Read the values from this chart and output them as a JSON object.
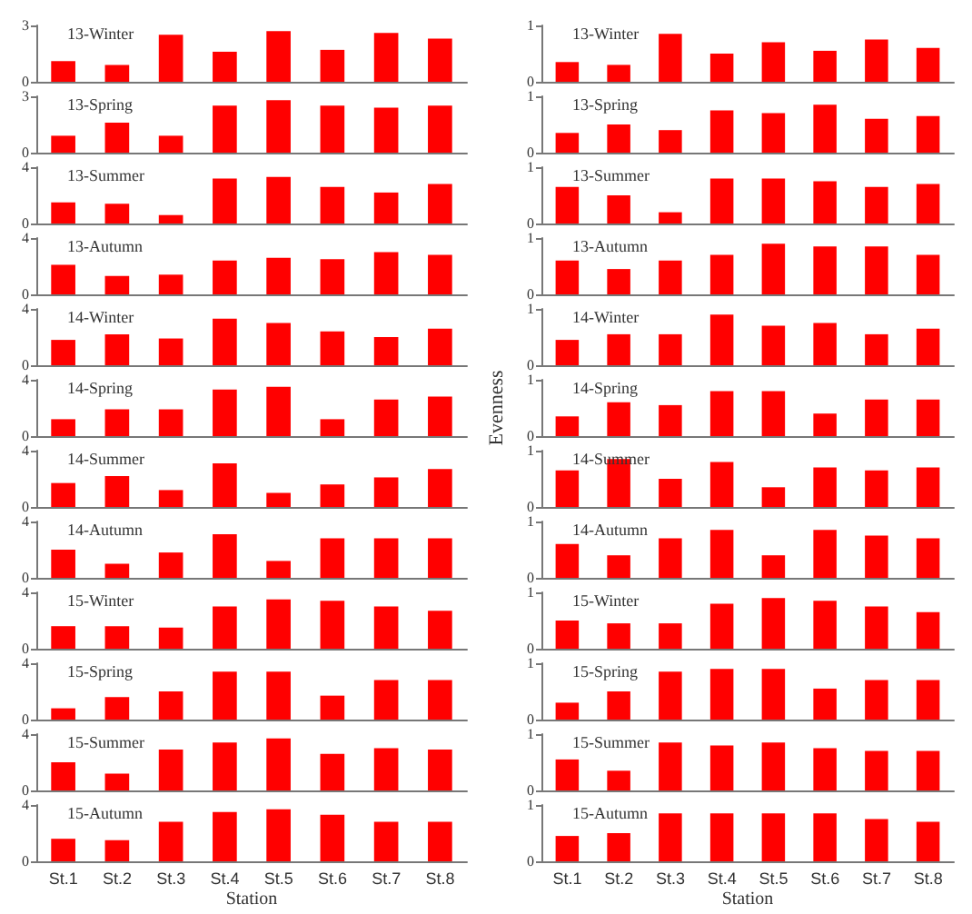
{
  "chart_data": [
    {
      "type": "bar",
      "title": "13-Winter",
      "categories": [
        null,
        null,
        null,
        null,
        null,
        null,
        null,
        null
      ],
      "values": [
        1.1,
        0.9,
        2.5,
        1.6,
        2.7,
        1.7,
        2.6,
        2.3
      ],
      "color": "#ff0000",
      "ylim": [
        0,
        3
      ],
      "yticks": [
        0,
        3
      ],
      "tick_labels": "y"
    },
    {
      "type": "bar",
      "title": "13-Spring",
      "categories": [
        null,
        null,
        null,
        null,
        null,
        null,
        null,
        null
      ],
      "values": [
        0.9,
        1.6,
        0.9,
        2.5,
        2.8,
        2.5,
        2.4,
        2.5
      ],
      "color": "#ff0000",
      "ylim": [
        0,
        3
      ],
      "yticks": [
        0,
        3
      ],
      "tick_labels": "y"
    },
    {
      "type": "bar",
      "title": "13-Summer",
      "categories": [
        null,
        null,
        null,
        null,
        null,
        null,
        null,
        null
      ],
      "values": [
        1.5,
        1.4,
        0.6,
        3.2,
        3.3,
        2.6,
        2.2,
        2.8
      ],
      "color": "#ff0000",
      "ylim": [
        0,
        4
      ],
      "yticks": [
        0,
        4
      ],
      "tick_labels": "y"
    },
    {
      "type": "bar",
      "title": "13-Autumn",
      "categories": [
        null,
        null,
        null,
        null,
        null,
        null,
        null,
        null
      ],
      "values": [
        2.1,
        1.3,
        1.4,
        2.4,
        2.6,
        2.5,
        3.0,
        2.8
      ],
      "color": "#ff0000",
      "ylim": [
        0,
        4
      ],
      "yticks": [
        0,
        4
      ],
      "tick_labels": "y"
    },
    {
      "type": "bar",
      "title": "14-Winter",
      "categories": [
        null,
        null,
        null,
        null,
        null,
        null,
        null,
        null
      ],
      "values": [
        1.8,
        2.2,
        1.9,
        3.3,
        3.0,
        2.4,
        2.0,
        2.6
      ],
      "color": "#ff0000",
      "ylim": [
        0,
        4
      ],
      "yticks": [
        0,
        4
      ],
      "tick_labels": "y"
    },
    {
      "type": "bar",
      "title": "14-Spring",
      "categories": [
        null,
        null,
        null,
        null,
        null,
        null,
        null,
        null
      ],
      "values": [
        1.2,
        1.9,
        1.9,
        3.3,
        3.5,
        1.2,
        2.6,
        2.8
      ],
      "color": "#ff0000",
      "ylim": [
        0,
        4
      ],
      "yticks": [
        0,
        4
      ],
      "tick_labels": "y"
    },
    {
      "type": "bar",
      "title": "14-Summer",
      "categories": [
        null,
        null,
        null,
        null,
        null,
        null,
        null,
        null
      ],
      "values": [
        1.7,
        2.2,
        1.2,
        3.1,
        1.0,
        1.6,
        2.1,
        2.7
      ],
      "color": "#ff0000",
      "ylim": [
        0,
        4
      ],
      "yticks": [
        0,
        4
      ],
      "tick_labels": "y"
    },
    {
      "type": "bar",
      "title": "14-Autumn",
      "categories": [
        null,
        null,
        null,
        null,
        null,
        null,
        null,
        null
      ],
      "values": [
        2.0,
        1.0,
        1.8,
        3.1,
        1.2,
        2.8,
        2.8,
        2.8
      ],
      "color": "#ff0000",
      "ylim": [
        0,
        4
      ],
      "yticks": [
        0,
        4
      ],
      "tick_labels": "y"
    },
    {
      "type": "bar",
      "title": "15-Winter",
      "categories": [
        null,
        null,
        null,
        null,
        null,
        null,
        null,
        null
      ],
      "values": [
        1.6,
        1.6,
        1.5,
        3.0,
        3.5,
        3.4,
        3.0,
        2.7
      ],
      "color": "#ff0000",
      "ylim": [
        0,
        4
      ],
      "yticks": [
        0,
        4
      ],
      "tick_labels": "y"
    },
    {
      "type": "bar",
      "title": "15-Spring",
      "categories": [
        null,
        null,
        null,
        null,
        null,
        null,
        null,
        null
      ],
      "values": [
        0.8,
        1.6,
        2.0,
        3.4,
        3.4,
        1.7,
        2.8,
        2.8
      ],
      "color": "#ff0000",
      "ylim": [
        0,
        4
      ],
      "yticks": [
        0,
        4
      ],
      "tick_labels": "y"
    },
    {
      "type": "bar",
      "title": "15-Summer",
      "categories": [
        null,
        null,
        null,
        null,
        null,
        null,
        null,
        null
      ],
      "values": [
        2.0,
        1.2,
        2.9,
        3.4,
        3.7,
        2.6,
        3.0,
        2.9
      ],
      "color": "#ff0000",
      "ylim": [
        0,
        4
      ],
      "yticks": [
        0,
        4
      ],
      "tick_labels": "y"
    },
    {
      "type": "bar",
      "title": "15-Autumn",
      "categories": [
        "St.1",
        "St.2",
        "St.3",
        "St.4",
        "St.5",
        "St.6",
        "St.7",
        "St.8"
      ],
      "values": [
        1.6,
        1.5,
        2.8,
        3.5,
        3.7,
        3.3,
        2.8,
        2.8
      ],
      "color": "#ff0000",
      "ylim": [
        0,
        4
      ],
      "yticks": [
        0,
        4
      ],
      "xlabel": "Station"
    },
    {
      "type": "bar",
      "title": "13-Winter",
      "categories": [
        null,
        null,
        null,
        null,
        null,
        null,
        null,
        null
      ],
      "values": [
        0.35,
        0.3,
        0.85,
        0.5,
        0.7,
        0.55,
        0.75,
        0.6
      ],
      "color": "#ff0000",
      "ylim": [
        0,
        1
      ],
      "yticks": [
        0,
        1
      ],
      "tick_labels": "y"
    },
    {
      "type": "bar",
      "title": "13-Spring",
      "categories": [
        null,
        null,
        null,
        null,
        null,
        null,
        null,
        null
      ],
      "values": [
        0.35,
        0.5,
        0.4,
        0.75,
        0.7,
        0.85,
        0.6,
        0.65
      ],
      "color": "#ff0000",
      "ylim": [
        0,
        1
      ],
      "yticks": [
        0,
        1
      ],
      "tick_labels": "y"
    },
    {
      "type": "bar",
      "title": "13-Summer",
      "categories": [
        null,
        null,
        null,
        null,
        null,
        null,
        null,
        null
      ],
      "values": [
        0.65,
        0.5,
        0.2,
        0.8,
        0.8,
        0.75,
        0.65,
        0.7
      ],
      "color": "#ff0000",
      "ylim": [
        0,
        1
      ],
      "yticks": [
        0,
        1
      ],
      "tick_labels": "y"
    },
    {
      "type": "bar",
      "title": "13-Autumn",
      "categories": [
        null,
        null,
        null,
        null,
        null,
        null,
        null,
        null
      ],
      "values": [
        0.6,
        0.45,
        0.6,
        0.7,
        0.9,
        0.85,
        0.85,
        0.7
      ],
      "color": "#ff0000",
      "ylim": [
        0,
        1
      ],
      "yticks": [
        0,
        1
      ],
      "tick_labels": "y"
    },
    {
      "type": "bar",
      "title": "14-Winter",
      "categories": [
        null,
        null,
        null,
        null,
        null,
        null,
        null,
        null
      ],
      "values": [
        0.45,
        0.55,
        0.55,
        0.9,
        0.7,
        0.75,
        0.55,
        0.65
      ],
      "color": "#ff0000",
      "ylim": [
        0,
        1
      ],
      "yticks": [
        0,
        1
      ],
      "tick_labels": "y"
    },
    {
      "type": "bar",
      "title": "14-Spring",
      "categories": [
        null,
        null,
        null,
        null,
        null,
        null,
        null,
        null
      ],
      "values": [
        0.35,
        0.6,
        0.55,
        0.8,
        0.8,
        0.4,
        0.65,
        0.65
      ],
      "color": "#ff0000",
      "ylim": [
        0,
        1
      ],
      "yticks": [
        0,
        1
      ],
      "tick_labels": "y",
      "ylabel": "Evenness"
    },
    {
      "type": "bar",
      "title": "14-Summer",
      "categories": [
        null,
        null,
        null,
        null,
        null,
        null,
        null,
        null
      ],
      "values": [
        0.65,
        0.85,
        0.5,
        0.8,
        0.35,
        0.7,
        0.65,
        0.7
      ],
      "color": "#ff0000",
      "ylim": [
        0,
        1
      ],
      "yticks": [
        0,
        1
      ],
      "tick_labels": "y"
    },
    {
      "type": "bar",
      "title": "14-Autumn",
      "categories": [
        null,
        null,
        null,
        null,
        null,
        null,
        null,
        null
      ],
      "values": [
        0.6,
        0.4,
        0.7,
        0.85,
        0.4,
        0.85,
        0.75,
        0.7
      ],
      "color": "#ff0000",
      "ylim": [
        0,
        1
      ],
      "yticks": [
        0,
        1
      ],
      "tick_labels": "y"
    },
    {
      "type": "bar",
      "title": "15-Winter",
      "categories": [
        null,
        null,
        null,
        null,
        null,
        null,
        null,
        null
      ],
      "values": [
        0.5,
        0.45,
        0.45,
        0.8,
        0.9,
        0.85,
        0.75,
        0.65
      ],
      "color": "#ff0000",
      "ylim": [
        0,
        1
      ],
      "yticks": [
        0,
        1
      ],
      "tick_labels": "y"
    },
    {
      "type": "bar",
      "title": "15-Spring",
      "categories": [
        null,
        null,
        null,
        null,
        null,
        null,
        null,
        null
      ],
      "values": [
        0.3,
        0.5,
        0.85,
        0.9,
        0.9,
        0.55,
        0.7,
        0.7
      ],
      "color": "#ff0000",
      "ylim": [
        0,
        1
      ],
      "yticks": [
        0,
        1
      ],
      "tick_labels": "y"
    },
    {
      "type": "bar",
      "title": "15-Summer",
      "categories": [
        null,
        null,
        null,
        null,
        null,
        null,
        null,
        null
      ],
      "values": [
        0.55,
        0.35,
        0.85,
        0.8,
        0.85,
        0.75,
        0.7,
        0.7
      ],
      "color": "#ff0000",
      "ylim": [
        0,
        1
      ],
      "yticks": [
        0,
        1
      ],
      "tick_labels": "y"
    },
    {
      "type": "bar",
      "title": "15-Autumn",
      "categories": [
        "St.1",
        "St.2",
        "St.3",
        "St.4",
        "St.5",
        "St.6",
        "St.7",
        "St.8"
      ],
      "values": [
        0.45,
        0.5,
        0.85,
        0.85,
        0.85,
        0.85,
        0.75,
        0.7
      ],
      "color": "#ff0000",
      "ylim": [
        0,
        1
      ],
      "yticks": [
        0,
        1
      ],
      "xlabel": "Station"
    }
  ]
}
